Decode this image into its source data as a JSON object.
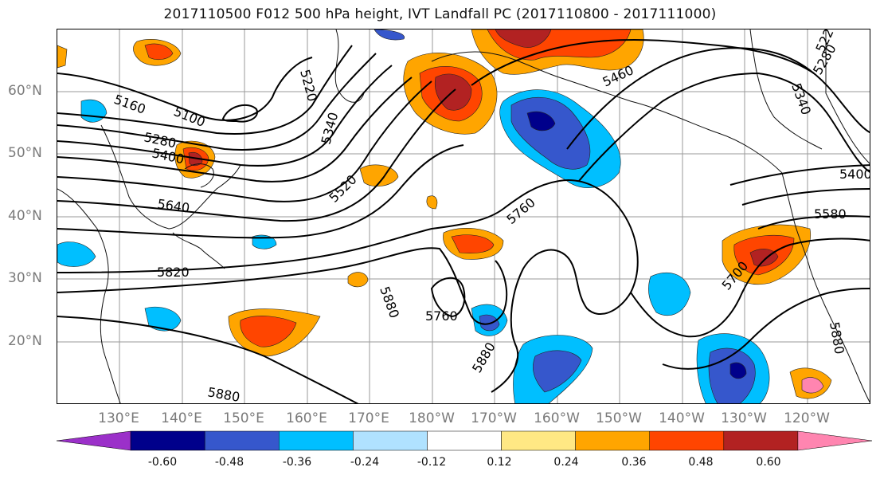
{
  "title": "2017110500 F012 500 hPa height, IVT Landfall PC (2017110800 - 2017111000)",
  "lat_labels": [
    "60°N",
    "50°N",
    "40°N",
    "30°N",
    "20°N"
  ],
  "lon_labels": [
    "130°E",
    "140°E",
    "150°E",
    "160°E",
    "170°E",
    "180°W",
    "170°W",
    "160°W",
    "150°W",
    "140°W",
    "130°W",
    "120°W"
  ],
  "contour_labels": [
    "5160",
    "5100",
    "5280",
    "5400",
    "5640",
    "5820",
    "5880",
    "5220",
    "5340",
    "5520",
    "5760",
    "5760",
    "5880",
    "5880",
    "5460",
    "5220",
    "5280",
    "5340",
    "5400",
    "5580",
    "5700",
    "5880"
  ],
  "colorbar": {
    "ticks": [
      "-0.60",
      "-0.48",
      "-0.36",
      "-0.24",
      "-0.12",
      "0.12",
      "0.24",
      "0.36",
      "0.48",
      "0.60"
    ],
    "colors": [
      "#9b30c9",
      "#00008b",
      "#3657cc",
      "#00bfff",
      "#b0e2ff",
      "#ffffff",
      "#ffe884",
      "#ffa500",
      "#ff4500",
      "#b22222",
      "#ff85b0"
    ]
  }
}
